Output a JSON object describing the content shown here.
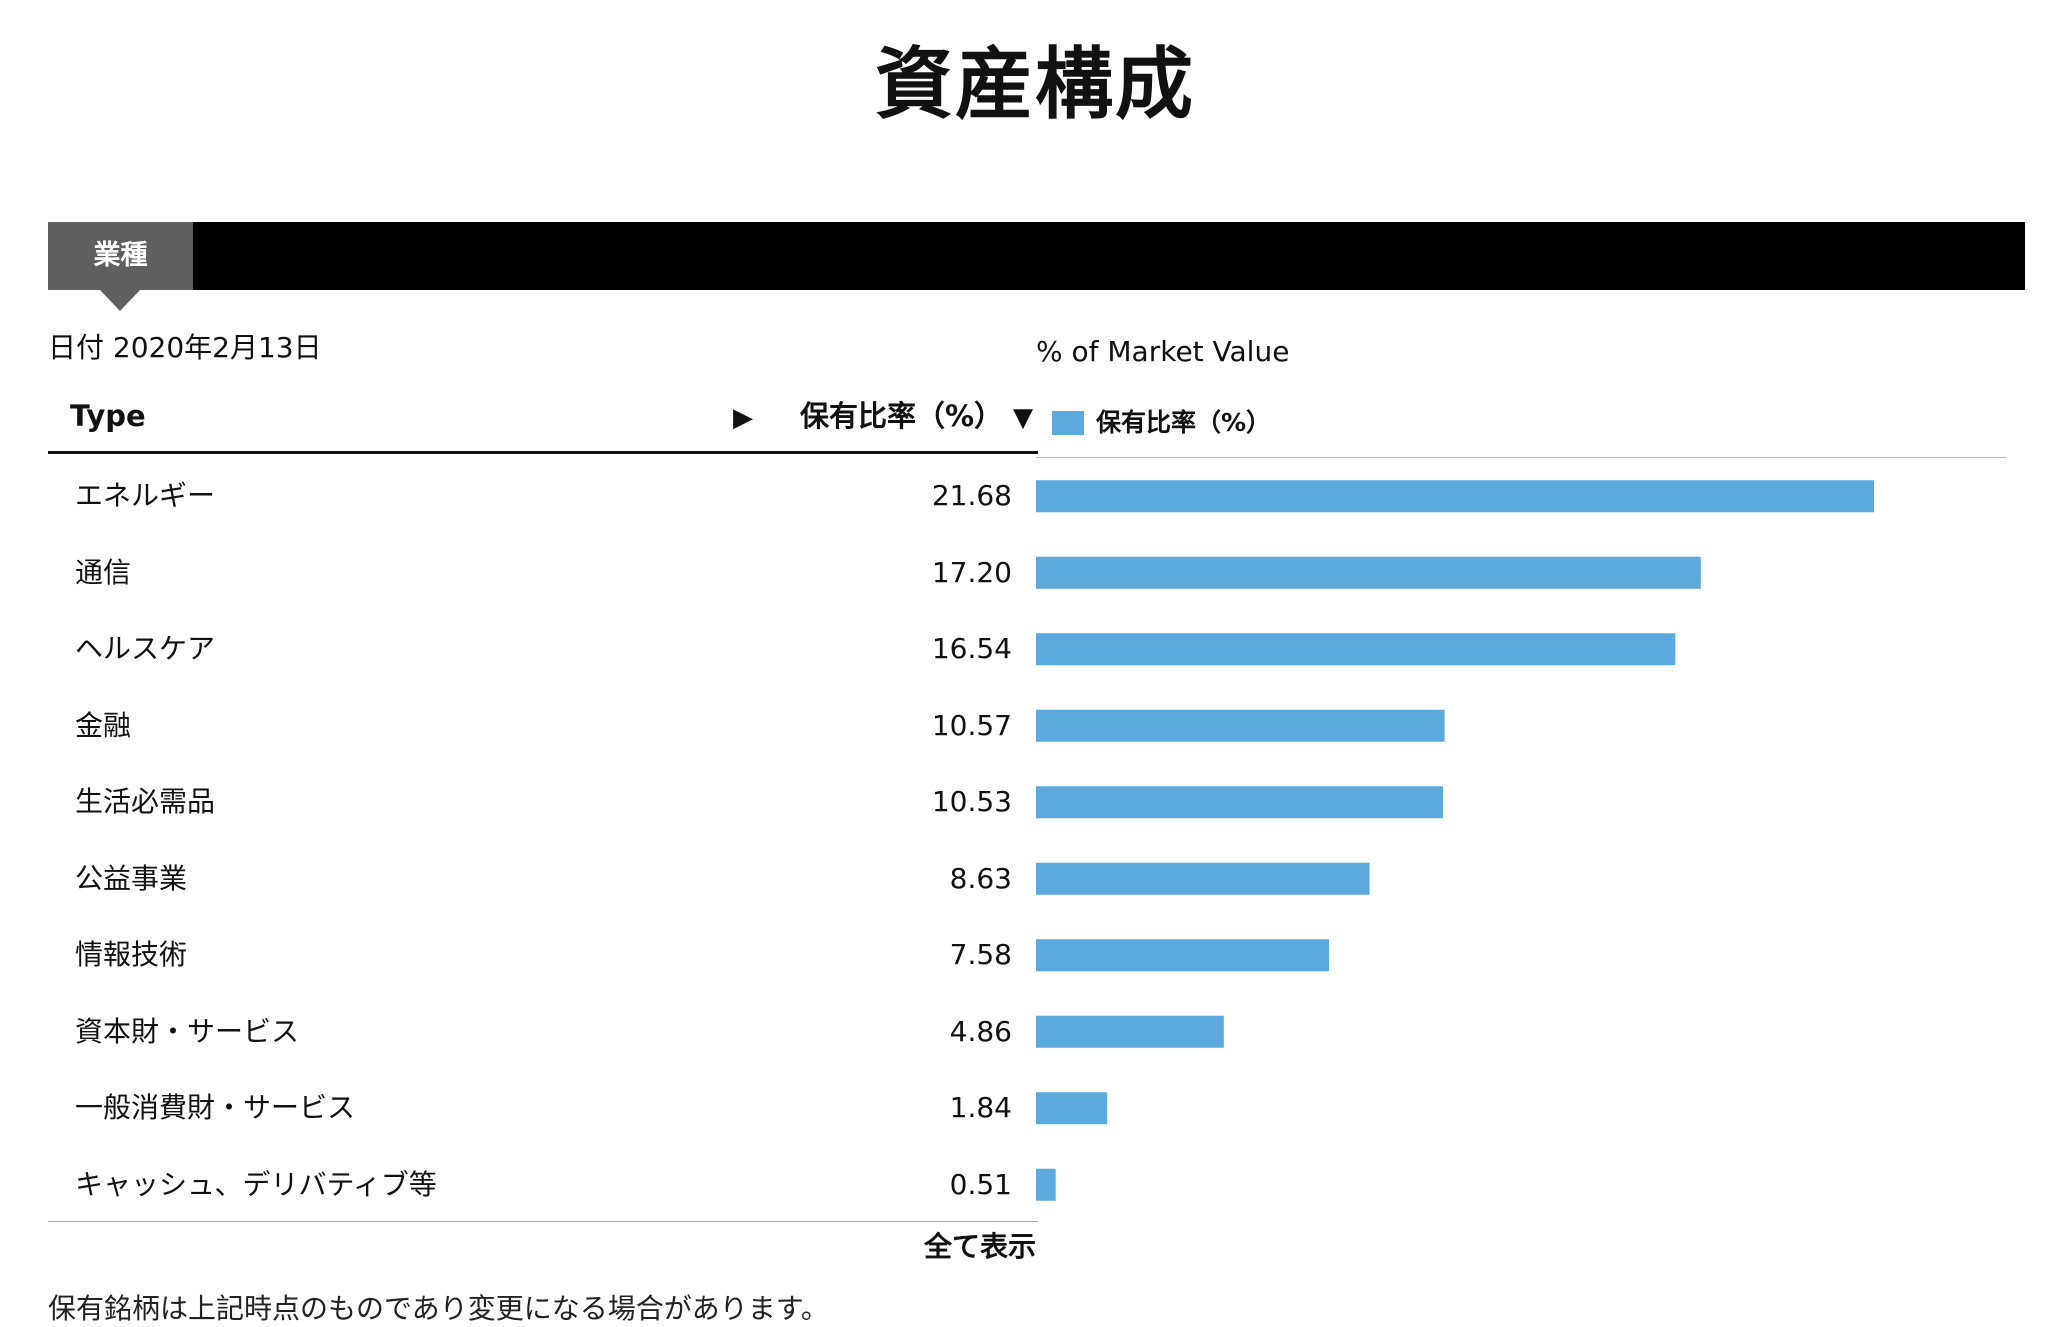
{
  "page": {
    "title": "資産構成"
  },
  "tabs": [
    {
      "label": "業種",
      "active": true
    }
  ],
  "table": {
    "date_label": "日付 2020年2月13日",
    "col_type": "Type",
    "col_weight": "保有比率（%）",
    "rows": [
      {
        "name": "エネルギー",
        "value": "21.68"
      },
      {
        "name": "通信",
        "value": "17.20"
      },
      {
        "name": "ヘルスケア",
        "value": "16.54"
      },
      {
        "name": "金融",
        "value": "10.57"
      },
      {
        "name": "生活必需品",
        "value": "10.53"
      },
      {
        "name": "公益事業",
        "value": "8.63"
      },
      {
        "name": "情報技術",
        "value": "7.58"
      },
      {
        "name": "資本財・サービス",
        "value": "4.86"
      },
      {
        "name": "一般消費財・サービス",
        "value": "1.84"
      },
      {
        "name": "キャッシュ、デリバティブ等",
        "value": "0.51"
      }
    ],
    "show_all": "全て表示"
  },
  "chart_data": {
    "type": "bar",
    "orientation": "horizontal",
    "title": "% of Market Value",
    "categories": [
      "エネルギー",
      "通信",
      "ヘルスケア",
      "金融",
      "生活必需品",
      "公益事業",
      "情報技術",
      "資本財・サービス",
      "一般消費財・サービス",
      "キャッシュ、デリバティブ等"
    ],
    "series": [
      {
        "name": "保有比率（%）",
        "values": [
          21.68,
          17.2,
          16.54,
          10.57,
          10.53,
          8.63,
          7.58,
          4.86,
          1.84,
          0.51
        ]
      }
    ],
    "xlim": [
      0,
      25
    ],
    "grid": false,
    "legend": "top-left",
    "bar_color": "#5ba9dd"
  },
  "footnote": "保有銘柄は上記時点のものであり変更になる場合があります。",
  "icons": {
    "sort_type": "▶",
    "sort_weight": "▼"
  }
}
